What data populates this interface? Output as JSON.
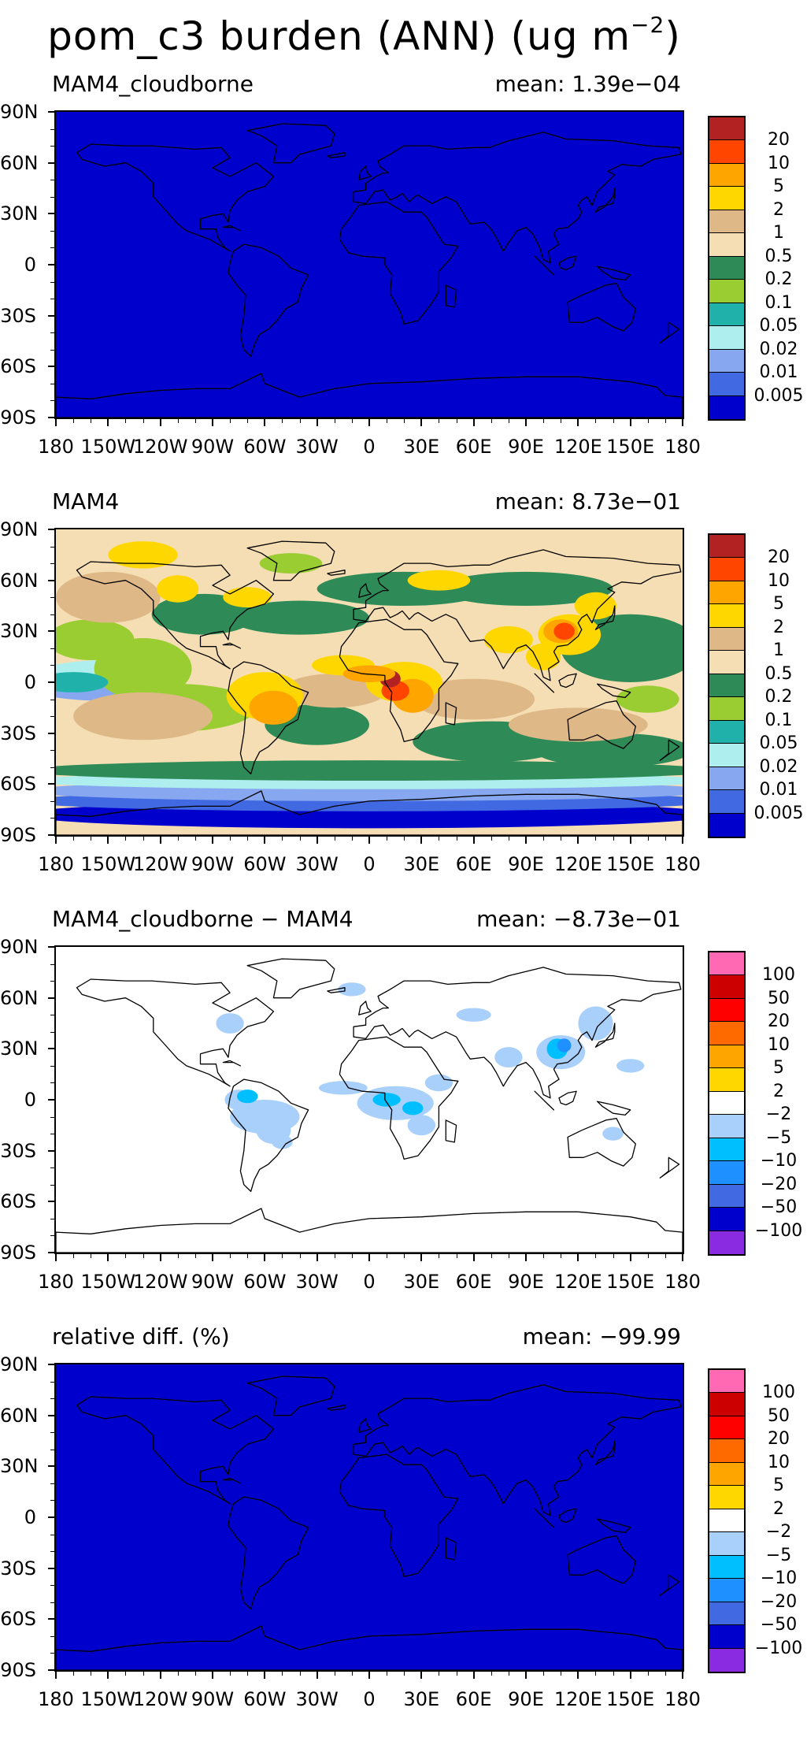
{
  "figure": {
    "title_main": "pom_c3 burden (ANN) (ug m",
    "title_exp": "−2",
    "title_close": ")"
  },
  "axes": {
    "lat_labels": [
      "90N",
      "60N",
      "30N",
      "0",
      "30S",
      "60S",
      "90S"
    ],
    "lon_labels": [
      "180",
      "150W",
      "120W",
      "90W",
      "60W",
      "30W",
      "0",
      "30E",
      "60E",
      "90E",
      "120E",
      "150E",
      "180"
    ]
  },
  "scale_burden": {
    "labels": [
      "20",
      "10",
      "5",
      "2",
      "1",
      "0.5",
      "0.2",
      "0.1",
      "0.05",
      "0.02",
      "0.01",
      "0.005"
    ],
    "colors": [
      "#b22222",
      "#ff4500",
      "#ffa500",
      "#ffd700",
      "#deb887",
      "#f5deb3",
      "#2e8b57",
      "#9acd32",
      "#20b2aa",
      "#afeeee",
      "#87a8f0",
      "#4169e1",
      "#0000cd"
    ]
  },
  "scale_diff": {
    "labels": [
      "100",
      "50",
      "20",
      "10",
      "5",
      "2",
      "−2",
      "−5",
      "−10",
      "−20",
      "−50",
      "−100"
    ],
    "colors": [
      "#ff69b4",
      "#cd0000",
      "#ff0000",
      "#ff6a00",
      "#ffa500",
      "#ffd700",
      "#ffffff",
      "#a8d0fa",
      "#00bfff",
      "#1e90ff",
      "#4169e1",
      "#0000cd",
      "#8a2be2"
    ]
  },
  "panels": [
    {
      "label": "MAM4_cloudborne",
      "mean": "mean: 1.39e−04",
      "scale": "burden",
      "kind": "uniform",
      "fill": "#0000cd"
    },
    {
      "label": "MAM4",
      "mean": "mean: 8.73e−01",
      "scale": "burden",
      "kind": "burden-field"
    },
    {
      "label": "MAM4_cloudborne − MAM4",
      "mean": "mean: −8.73e−01",
      "scale": "diff",
      "kind": "diff-field"
    },
    {
      "label": "relative diff. (%)",
      "mean": "mean: −99.99",
      "scale": "diff",
      "kind": "uniform",
      "fill": "#0000cd"
    }
  ]
}
